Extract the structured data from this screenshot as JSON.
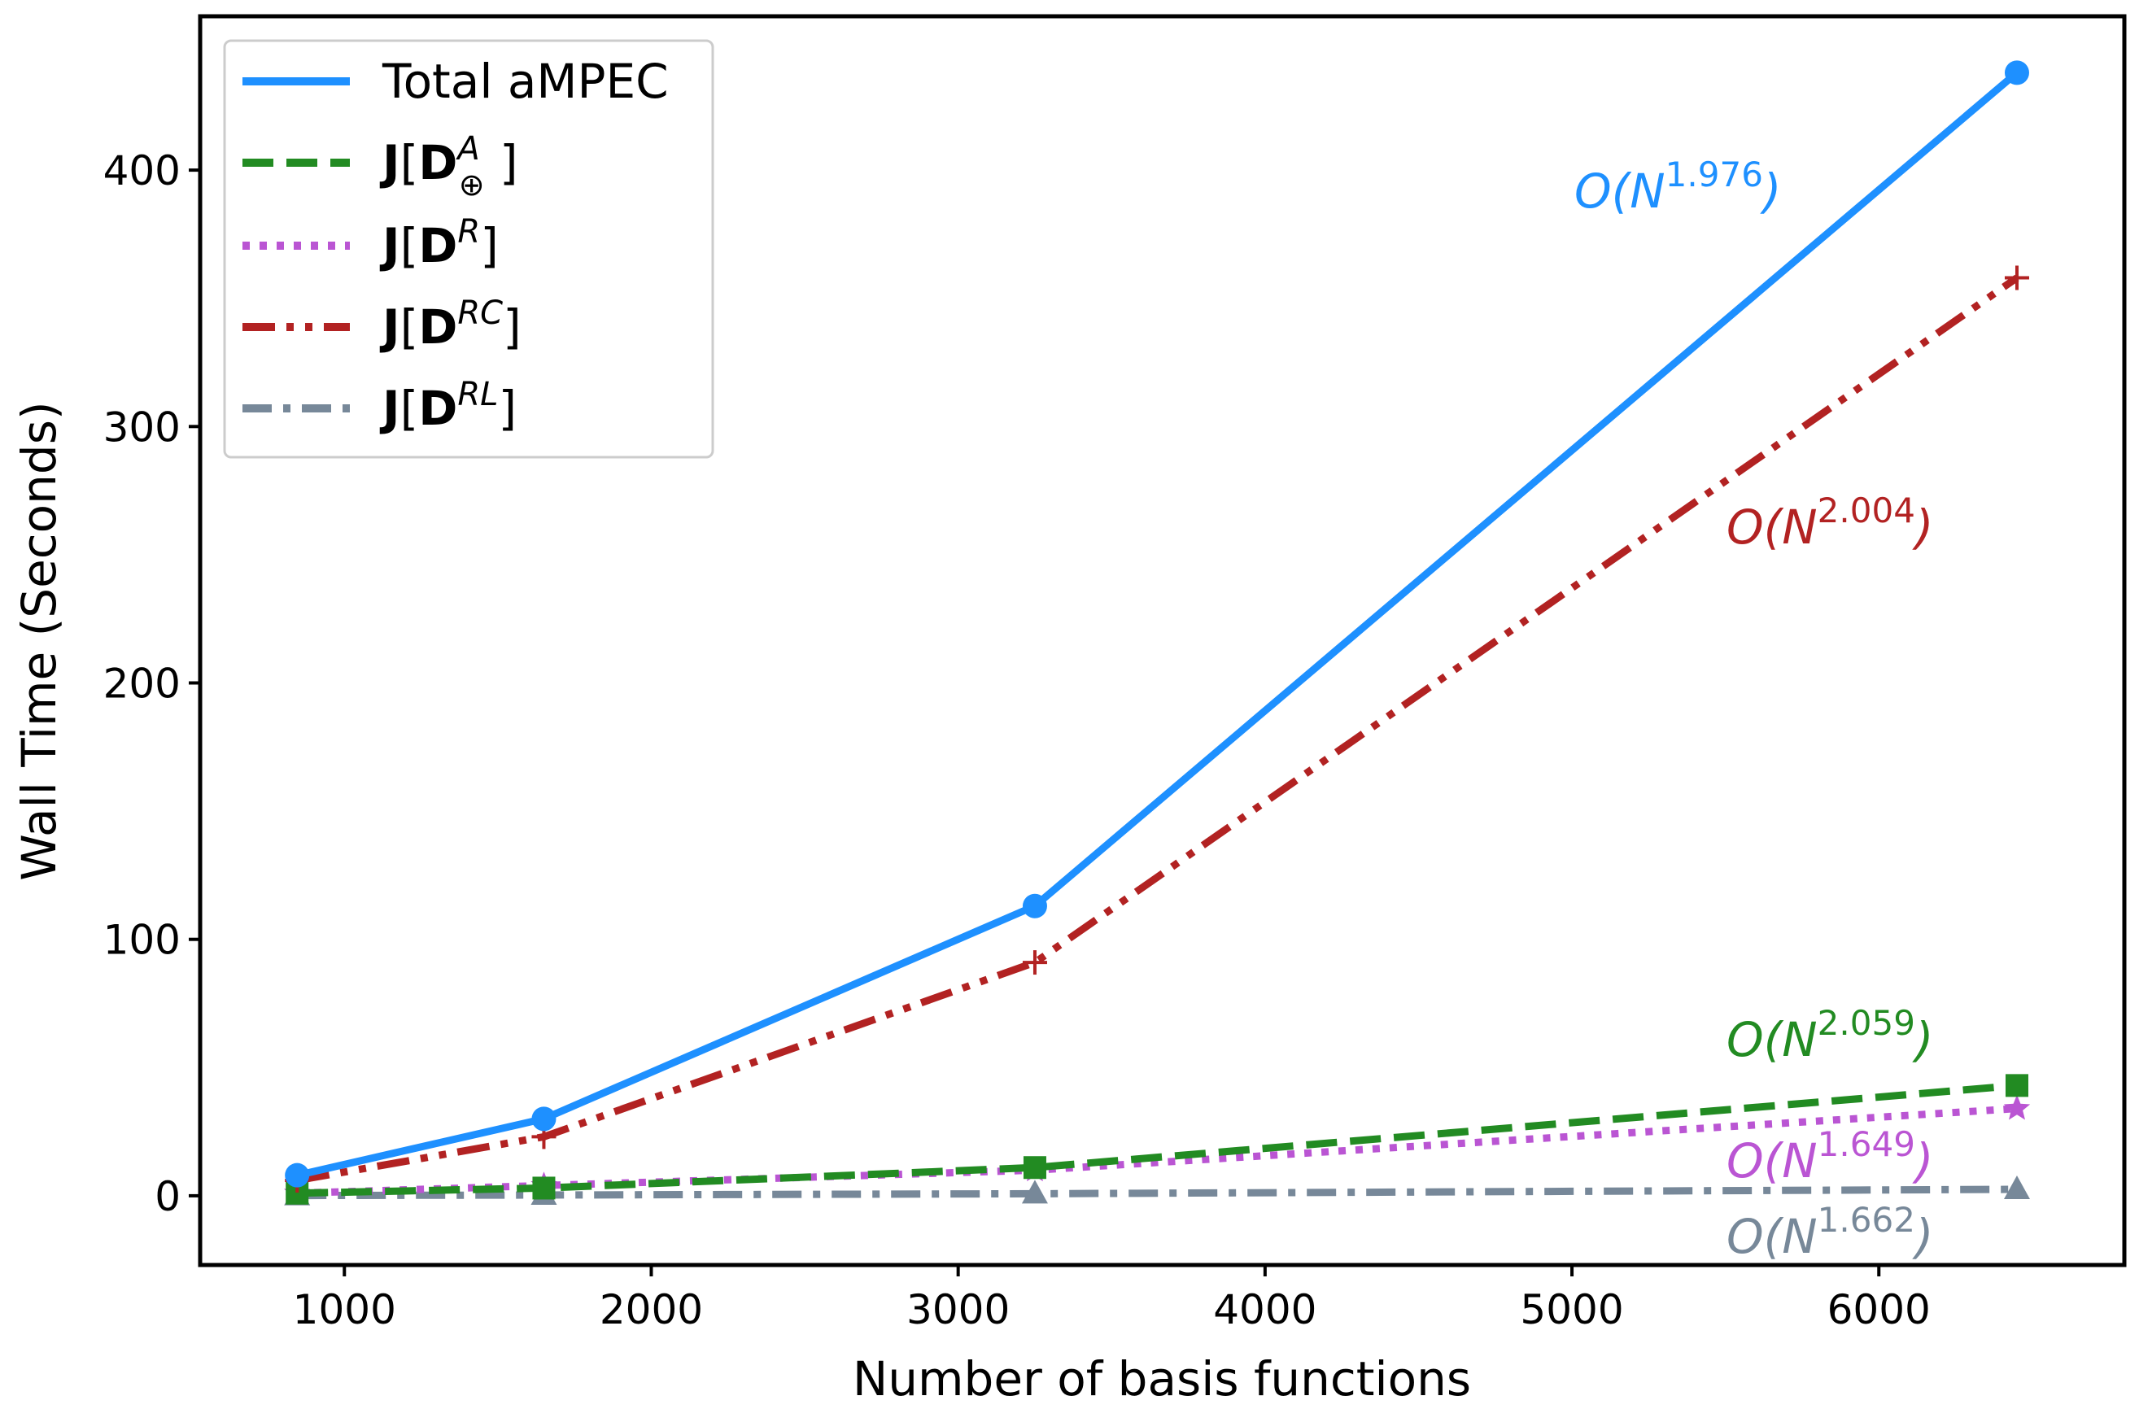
{
  "chart_data": {
    "type": "line",
    "title": "",
    "xlabel": "Number of basis functions",
    "ylabel": "Wall Time (Seconds)",
    "xlim": [
      530,
      6800
    ],
    "ylim": [
      -27,
      460
    ],
    "xticks": [
      1000,
      2000,
      3000,
      4000,
      5000,
      6000
    ],
    "yticks": [
      0,
      100,
      200,
      300,
      400
    ],
    "grid": false,
    "legend_position": "top-left",
    "x": [
      846,
      1650,
      3250,
      6450
    ],
    "series": [
      {
        "name": "Total aMPEC",
        "values": [
          8,
          30,
          113,
          438
        ],
        "color": "#1e90ff",
        "line_style": "solid",
        "marker": "circle",
        "scaling_label": {
          "base": "O(N",
          "exponent": "1.976",
          "close": ")"
        }
      },
      {
        "name": "J[D⊕A]",
        "legend_parts": {
          "prefix": "J[D",
          "sup": "A",
          "sub": "⊕",
          "suffix": " ]"
        },
        "values": [
          1,
          3,
          11,
          43
        ],
        "color": "#228b22",
        "line_style": "dashed",
        "marker": "square",
        "scaling_label": {
          "base": "O(N",
          "exponent": "2.059",
          "close": ")"
        }
      },
      {
        "name": "J[DR]",
        "legend_parts": {
          "prefix": "J[D",
          "sup": "R",
          "sub": "",
          "suffix": "]"
        },
        "values": [
          1,
          4,
          10,
          34
        ],
        "color": "#ba55d3",
        "line_style": "dotted",
        "marker": "star",
        "scaling_label": {
          "base": "O(N",
          "exponent": "1.649",
          "close": ")"
        }
      },
      {
        "name": "J[DRC]",
        "legend_parts": {
          "prefix": "J[D",
          "sup": "RC",
          "sub": "",
          "suffix": "]"
        },
        "values": [
          6,
          23,
          91,
          358
        ],
        "color": "#b22222",
        "line_style": "dashdotdot",
        "marker": "plus",
        "scaling_label": {
          "base": "O(N",
          "exponent": "2.004",
          "close": ")"
        }
      },
      {
        "name": "J[DRL]",
        "legend_parts": {
          "prefix": "J[D",
          "sup": "RL",
          "sub": "",
          "suffix": "]"
        },
        "values": [
          0.1,
          0.3,
          0.8,
          2.5
        ],
        "color": "#778899",
        "line_style": "dashdot",
        "marker": "triangle",
        "scaling_label": {
          "base": "O(N",
          "exponent": "1.662",
          "close": ")"
        }
      }
    ]
  }
}
